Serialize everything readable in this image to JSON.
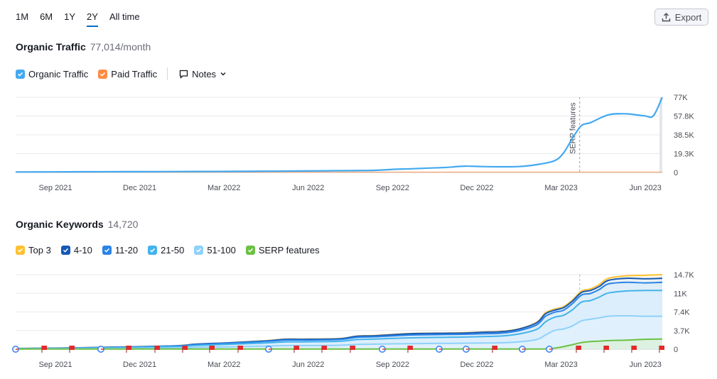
{
  "range_tabs": [
    {
      "label": "1M",
      "active": false
    },
    {
      "label": "6M",
      "active": false
    },
    {
      "label": "1Y",
      "active": false
    },
    {
      "label": "2Y",
      "active": true
    },
    {
      "label": "All time",
      "active": false
    }
  ],
  "export_label": "Export",
  "traffic": {
    "title": "Organic Traffic",
    "value": "77,014/month",
    "legend": [
      {
        "label": "Organic Traffic",
        "color": "#43a9f0"
      },
      {
        "label": "Paid Traffic",
        "color": "#ff8c43"
      }
    ],
    "notes_label": "Notes"
  },
  "keywords": {
    "title": "Organic Keywords",
    "value": "14,720",
    "legend": [
      {
        "label": "Top 3",
        "color": "#ffc134"
      },
      {
        "label": "4-10",
        "color": "#1659b5"
      },
      {
        "label": "11-20",
        "color": "#2a84e8"
      },
      {
        "label": "21-50",
        "color": "#43b3ec"
      },
      {
        "label": "51-100",
        "color": "#8fd1fb"
      },
      {
        "label": "SERP features",
        "color": "#6cc043"
      }
    ]
  },
  "chart_data": [
    {
      "type": "line",
      "x_ticks": [
        "Sep 2021",
        "Dec 2021",
        "Mar 2022",
        "Jun 2022",
        "Sep 2022",
        "Dec 2022",
        "Mar 2023",
        "Jun 2023"
      ],
      "y_ticks": [
        "77K",
        "57.8K",
        "38.5K",
        "19.3K",
        "0"
      ],
      "ylim": [
        0,
        77014
      ],
      "annotation": "SERP features",
      "annotation_x": 31.4,
      "series": [
        {
          "name": "Organic Traffic",
          "color": "#43a9f0",
          "x": [
            0,
            2,
            4,
            6,
            8,
            10,
            12,
            14,
            16,
            18,
            20,
            21,
            22,
            23,
            24,
            25,
            26,
            27,
            28,
            29,
            30,
            30.5,
            31,
            31.5,
            32,
            33,
            34,
            35,
            35.5,
            36
          ],
          "y": [
            500,
            600,
            700,
            800,
            900,
            1000,
            1100,
            1300,
            1500,
            1800,
            2200,
            3200,
            3800,
            4500,
            5200,
            6500,
            6000,
            5800,
            6000,
            8000,
            12000,
            20000,
            35000,
            48000,
            51000,
            59000,
            60000,
            58000,
            58000,
            77014
          ]
        },
        {
          "name": "Paid Traffic",
          "color": "#ff8c43",
          "x": [
            0,
            36
          ],
          "y": [
            0,
            0
          ]
        }
      ]
    },
    {
      "type": "area",
      "x_ticks": [
        "Sep 2021",
        "Dec 2021",
        "Mar 2022",
        "Jun 2022",
        "Sep 2022",
        "Dec 2022",
        "Mar 2023",
        "Jun 2023"
      ],
      "y_ticks": [
        "14.7K",
        "11K",
        "7.4K",
        "3.7K",
        "0"
      ],
      "ylim": [
        0,
        14720
      ],
      "x": [
        0,
        3,
        6,
        9,
        10,
        12,
        14,
        15,
        16,
        18,
        19,
        20,
        22,
        24,
        25,
        26,
        27,
        28,
        29,
        29.5,
        30,
        30.5,
        31,
        31.5,
        32,
        32.5,
        33,
        34,
        35,
        36
      ],
      "series": [
        {
          "name": "Top 3",
          "color": "#ffc134",
          "y": [
            150,
            250,
            450,
            700,
            1000,
            1300,
            1700,
            2000,
            2000,
            2100,
            2600,
            2700,
            3100,
            3200,
            3250,
            3400,
            3500,
            4000,
            5300,
            7200,
            7900,
            8400,
            9700,
            11500,
            11900,
            12800,
            14000,
            14500,
            14600,
            14720
          ]
        },
        {
          "name": "4-10",
          "color": "#1659b5",
          "y": [
            140,
            240,
            430,
            680,
            980,
            1280,
            1650,
            1950,
            1950,
            2050,
            2550,
            2650,
            3050,
            3150,
            3200,
            3350,
            3450,
            3950,
            5200,
            7000,
            7700,
            8200,
            9500,
            11200,
            11600,
            12400,
            13600,
            14000,
            13900,
            14000
          ]
        },
        {
          "name": "11-20",
          "color": "#2a84e8",
          "y": [
            120,
            220,
            400,
            640,
            900,
            1200,
            1550,
            1800,
            1800,
            1900,
            2350,
            2450,
            2800,
            2900,
            2950,
            3050,
            3150,
            3650,
            4800,
            6500,
            7300,
            7700,
            9000,
            10700,
            11000,
            11800,
            12900,
            13200,
            13100,
            13200
          ]
        },
        {
          "name": "21-50",
          "color": "#43b3ec",
          "y": [
            100,
            180,
            320,
            520,
            740,
            980,
            1250,
            1450,
            1450,
            1550,
            1900,
            2000,
            2250,
            2350,
            2400,
            2500,
            2600,
            3000,
            3900,
            5400,
            6300,
            6700,
            7800,
            9300,
            9600,
            10300,
            11100,
            11500,
            11600,
            11600
          ]
        },
        {
          "name": "51-100",
          "color": "#8fd1fb",
          "y": [
            60,
            90,
            160,
            260,
            370,
            480,
            620,
            720,
            720,
            770,
            950,
            1000,
            1100,
            1150,
            1180,
            1220,
            1260,
            1450,
            1900,
            2800,
            3700,
            4000,
            4600,
            5600,
            5900,
            6200,
            6500,
            6600,
            6500,
            6500
          ]
        },
        {
          "name": "SERP features",
          "color": "#6cc043",
          "y": [
            30,
            30,
            30,
            30,
            30,
            30,
            30,
            30,
            30,
            30,
            30,
            30,
            30,
            30,
            30,
            30,
            30,
            30,
            30,
            50,
            200,
            500,
            900,
            1300,
            1500,
            1600,
            1700,
            1800,
            1950,
            2000
          ]
        }
      ]
    }
  ]
}
